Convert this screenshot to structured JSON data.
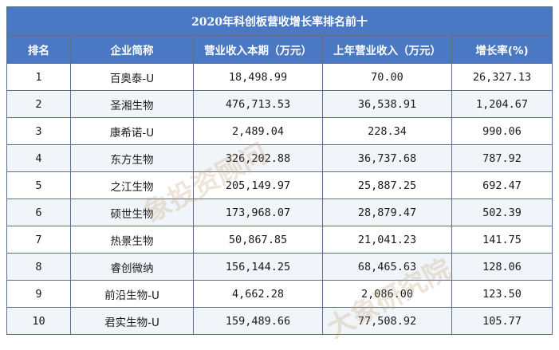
{
  "table": {
    "title": "2020年科创板营收增长率排名前十",
    "headers": {
      "rank": "排名",
      "company": "企业简称",
      "revenue_current": "营业收入本期（万元）",
      "revenue_last_year": "上年营业收入（万元）",
      "growth_rate": "增长率(%)"
    },
    "rows": [
      {
        "rank": "1",
        "company": "百奥泰-U",
        "revenue_current": "18,498.99",
        "revenue_last_year": "70.00",
        "growth_rate": "26,327.13"
      },
      {
        "rank": "2",
        "company": "圣湘生物",
        "revenue_current": "476,713.53",
        "revenue_last_year": "36,538.91",
        "growth_rate": "1,204.67"
      },
      {
        "rank": "3",
        "company": "康希诺-U",
        "revenue_current": "2,489.04",
        "revenue_last_year": "228.34",
        "growth_rate": "990.06"
      },
      {
        "rank": "4",
        "company": "东方生物",
        "revenue_current": "326,202.88",
        "revenue_last_year": "36,737.68",
        "growth_rate": "787.92"
      },
      {
        "rank": "5",
        "company": "之江生物",
        "revenue_current": "205,149.97",
        "revenue_last_year": "25,887.25",
        "growth_rate": "692.47"
      },
      {
        "rank": "6",
        "company": "硕世生物",
        "revenue_current": "173,968.07",
        "revenue_last_year": "28,879.47",
        "growth_rate": "502.39"
      },
      {
        "rank": "7",
        "company": "热景生物",
        "revenue_current": "50,867.85",
        "revenue_last_year": "21,041.23",
        "growth_rate": "141.75"
      },
      {
        "rank": "8",
        "company": "睿创微纳",
        "revenue_current": "156,144.25",
        "revenue_last_year": "68,465.63",
        "growth_rate": "128.06"
      },
      {
        "rank": "9",
        "company": "前沿生物-U",
        "revenue_current": "4,662.28",
        "revenue_last_year": "2,086.00",
        "growth_rate": "123.50"
      },
      {
        "rank": "10",
        "company": "君实生物-U",
        "revenue_current": "159,489.66",
        "revenue_last_year": "77,508.92",
        "growth_rate": "105.77"
      }
    ]
  },
  "watermark": {
    "text_1": "象投资顾问",
    "text_2": "大象研究院"
  },
  "colors": {
    "header_bg": "#4a78c2",
    "header_text": "#ffffff",
    "border": "#5a6f8c",
    "row_alt_bg": "#f1f4f9"
  }
}
